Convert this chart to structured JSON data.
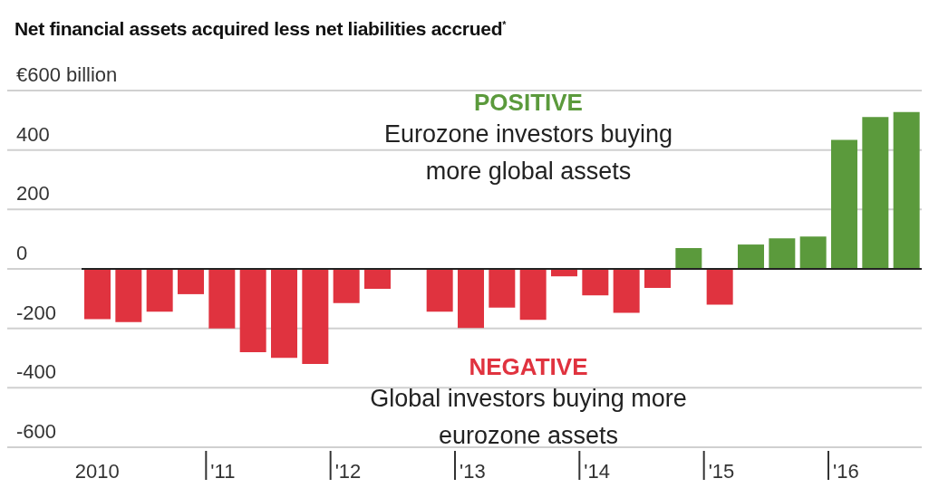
{
  "chart_data": {
    "type": "bar",
    "title": "Net financial assets acquired less net liabilities accrued$^{*}$",
    "categories": [
      "2010",
      null,
      null,
      null,
      "'11",
      null,
      null,
      null,
      "'12",
      null,
      null,
      null,
      "'13",
      null,
      null,
      null,
      "'14",
      null,
      null,
      null,
      "'15",
      null,
      null,
      null,
      "'16",
      null,
      null
    ],
    "values": [
      -169,
      -179,
      -144,
      -85,
      -200,
      -280,
      -299,
      -320,
      -115,
      -67,
      0,
      -144,
      -199,
      -130,
      -171,
      -25,
      -89,
      -148,
      -64,
      70,
      -120,
      82,
      103,
      109,
      434,
      511,
      528
    ],
    "colors": [
      "#e0333f",
      "#e0333f",
      "#e0333f",
      "#e0333f",
      "#e0333f",
      "#e0333f",
      "#e0333f",
      "#e0333f",
      "#e0333f",
      "#e0333f",
      "#e0333f",
      "#e0333f",
      "#e0333f",
      "#e0333f",
      "#e0333f",
      "#e0333f",
      "#e0333f",
      "#e0333f",
      "#e0333f",
      "#5b9a3c",
      "#e0333f",
      "#5b9a3c",
      "#5b9a3c",
      "#5b9a3c",
      "#5b9a3c",
      "#5b9a3c",
      "#5b9a3c"
    ],
    "ylim": [
      -600,
      600
    ],
    "yticks": [
      {
        "value": 600,
        "label": "€600 billion"
      },
      400,
      200,
      0,
      -200,
      -400,
      -600
    ],
    "grid": "y",
    "legend": false,
    "annotations": [
      "POSITIVE",
      "Eurozone investors buying more global assets",
      "NEGATIVE",
      "Global investors buying more eurozone assets"
    ]
  }
}
